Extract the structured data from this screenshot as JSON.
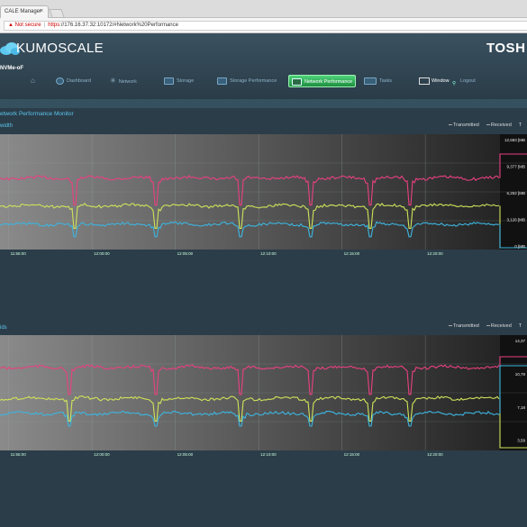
{
  "browser": {
    "tab_title": "CALE Manager",
    "tab_close": "×",
    "not_secure": "Not secure",
    "url_https": "https",
    "url_rest": "://176.16.37.32:10172/#Network%20Performance"
  },
  "header": {
    "logo": "KUMOSCALE",
    "brand": "TOSH",
    "product": "NVMe-oF"
  },
  "nav": {
    "items": [
      {
        "label": "Dashboard"
      },
      {
        "label": "Network"
      },
      {
        "label": "Storage"
      },
      {
        "label": "Storage Performance"
      },
      {
        "label": "Network Performance"
      },
      {
        "label": "Tasks"
      }
    ],
    "window_label": "Window",
    "logout_label": "Logout"
  },
  "page": {
    "title": "etwork Performance Monitor"
  },
  "legend": {
    "transmitted": "Transmitted",
    "received": "Received",
    "extra": "T"
  },
  "charts": [
    {
      "label": "width",
      "x_ticks": [
        "11:55:00",
        "12:00:00",
        "12:05:00",
        "12:10:00",
        "12:15:00",
        "12:20:00"
      ],
      "value_labels": [
        "12,583 [MB",
        "9,377 [MB",
        "6,252 [MB",
        "3,126 [MB",
        "0 [MB"
      ]
    },
    {
      "label": "ids",
      "x_ticks": [
        "11:55:00",
        "12:00:00",
        "12:05:00",
        "12:10:00",
        "12:15:00",
        "12:20:00"
      ],
      "value_labels": [
        "14,37",
        "10,78",
        "7,18",
        "3,59"
      ]
    }
  ],
  "chart_data": [
    {
      "type": "line",
      "x": [
        "11:55:00",
        "12:00:00",
        "12:05:00",
        "12:10:00",
        "12:15:00",
        "12:20:00"
      ],
      "series": [
        {
          "name": "Transmitted",
          "color": "#e8417f",
          "level": 0.62
        },
        {
          "name": "Received",
          "color": "#cfe35a",
          "level": 0.38
        },
        {
          "color": "#3cb5e0",
          "level": 0.22
        }
      ],
      "dips_x": [
        0.15,
        0.31,
        0.48,
        0.62,
        0.74,
        0.82
      ],
      "value_labels": [
        "12,583 [MB",
        "9,377 [MB",
        "6,252 [MB",
        "3,126 [MB",
        "0 [MB"
      ]
    },
    {
      "type": "line",
      "x": [
        "11:55:00",
        "12:00:00",
        "12:05:00",
        "12:10:00",
        "12:15:00",
        "12:20:00"
      ],
      "series": [
        {
          "name": "Transmitted",
          "color": "#e8417f",
          "level": 0.72
        },
        {
          "name": "Received",
          "color": "#cfe35a",
          "level": 0.45
        },
        {
          "color": "#3cb5e0",
          "level": 0.32
        }
      ],
      "dips_x": [
        0.14,
        0.31,
        0.48,
        0.62,
        0.74,
        0.82
      ],
      "value_labels": [
        "14,37",
        "10,78",
        "7,18",
        "3,59"
      ]
    }
  ]
}
